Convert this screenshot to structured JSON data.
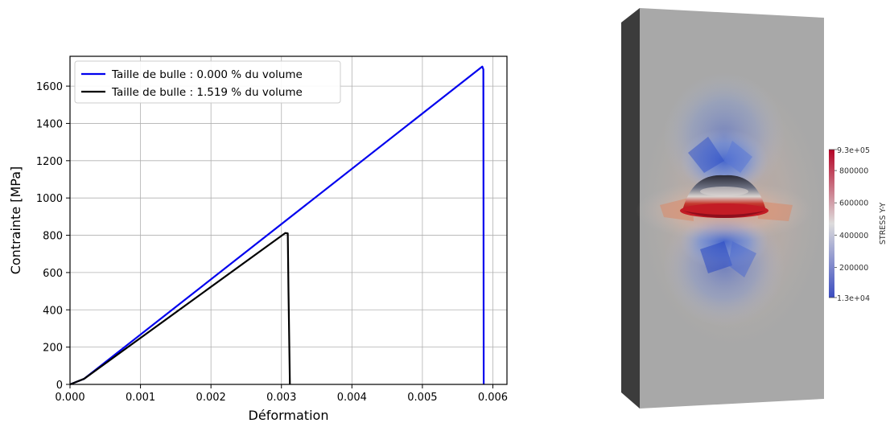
{
  "chart_data": {
    "type": "line",
    "title": "",
    "xlabel": "Déformation",
    "ylabel": "Contrainte [MPa]",
    "xlim": [
      0,
      0.0062
    ],
    "ylim": [
      0,
      1760
    ],
    "x_ticks": [
      0,
      0.001,
      0.002,
      0.003,
      0.004,
      0.005,
      0.006
    ],
    "x_tick_labels": [
      "0.000",
      "0.001",
      "0.002",
      "0.003",
      "0.004",
      "0.005",
      "0.006"
    ],
    "y_ticks": [
      0,
      200,
      400,
      600,
      800,
      1000,
      1200,
      1400,
      1600
    ],
    "y_tick_labels": [
      "0",
      "200",
      "400",
      "600",
      "800",
      "1000",
      "1200",
      "1400",
      "1600"
    ],
    "grid": true,
    "legend_position": "top-left",
    "series": [
      {
        "name": "Taille de bulle : 0.000 % du volume",
        "color": "#0000ee",
        "x": [
          0,
          0.0002,
          0.00585,
          0.005865,
          0.00587
        ],
        "y": [
          0,
          30,
          1705,
          1690,
          0
        ]
      },
      {
        "name": "Taille de bulle : 1.519 % du volume",
        "color": "#000000",
        "x": [
          0,
          0.0002,
          0.003055,
          0.00309,
          0.0031,
          0.00312
        ],
        "y": [
          0,
          30,
          812,
          810,
          500,
          0
        ]
      }
    ]
  },
  "simulation_render": {
    "colorbar": {
      "title": "STRESS Y-Y",
      "max_label": "9.3e+05",
      "min_label": "1.3e+04",
      "tick_labels": [
        "800000",
        "600000",
        "400000",
        "200000"
      ],
      "tick_values": [
        800000,
        600000,
        400000,
        200000
      ],
      "min": 13000,
      "max": 930000,
      "colors": [
        "#3b4cc0",
        "#dddcdc",
        "#b40426"
      ]
    }
  }
}
